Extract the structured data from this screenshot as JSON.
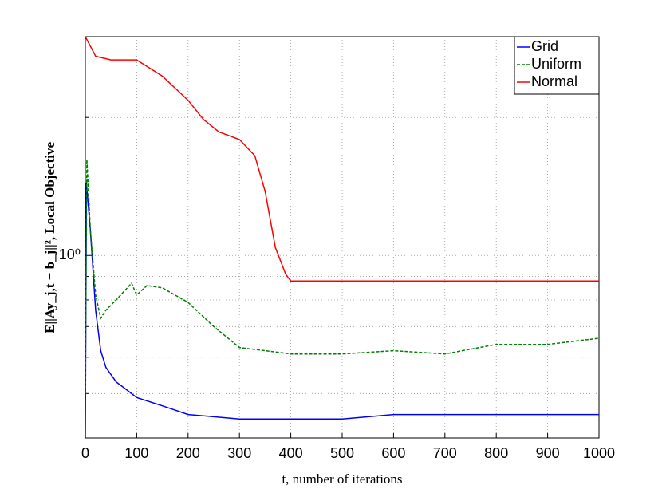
{
  "chart_data": {
    "type": "line",
    "xlabel": "t, number of iterations",
    "ylabel": "E||Ay_j,t − b_j||², Local Objective",
    "xlim": [
      0,
      1000
    ],
    "xticks": [
      0,
      100,
      200,
      300,
      400,
      500,
      600,
      700,
      800,
      900,
      1000
    ],
    "ylim": [
      0.4,
      3
    ],
    "yticks": [
      {
        "value": 1,
        "label": "10⁰"
      }
    ],
    "y_minor_ticks": [
      0.5,
      0.6,
      0.7,
      0.8,
      0.9,
      2,
      3
    ],
    "log_y": true,
    "grid": true,
    "legend": "upper right",
    "series": [
      {
        "name": "Grid",
        "color": "#0000ff",
        "dash": "solid",
        "x": [
          0,
          2,
          10,
          20,
          30,
          40,
          60,
          80,
          100,
          150,
          200,
          300,
          400,
          500,
          600,
          700,
          800,
          900,
          1000
        ],
        "values": [
          0.4,
          1.44,
          1.13,
          0.76,
          0.62,
          0.57,
          0.53,
          0.51,
          0.49,
          0.47,
          0.45,
          0.44,
          0.44,
          0.44,
          0.45,
          0.45,
          0.45,
          0.45,
          0.45
        ]
      },
      {
        "name": "Uniform",
        "color": "#008000",
        "dash": "dashed",
        "x": [
          0,
          3,
          10,
          20,
          30,
          40,
          60,
          90,
          100,
          120,
          150,
          200,
          250,
          300,
          350,
          400,
          500,
          600,
          700,
          800,
          900,
          1000
        ],
        "values": [
          0.5,
          1.62,
          1.13,
          0.82,
          0.73,
          0.76,
          0.8,
          0.87,
          0.82,
          0.86,
          0.85,
          0.79,
          0.7,
          0.63,
          0.62,
          0.61,
          0.61,
          0.62,
          0.61,
          0.64,
          0.64,
          0.66
        ]
      },
      {
        "name": "Normal",
        "color": "#ff0000",
        "dash": "solid",
        "x": [
          0,
          20,
          50,
          100,
          150,
          200,
          230,
          260,
          300,
          330,
          350,
          370,
          390,
          400,
          500,
          600,
          700,
          800,
          900,
          1000
        ],
        "values": [
          3.0,
          2.72,
          2.67,
          2.67,
          2.46,
          2.18,
          1.98,
          1.86,
          1.79,
          1.65,
          1.38,
          1.04,
          0.91,
          0.88,
          0.88,
          0.88,
          0.88,
          0.88,
          0.88,
          0.88
        ]
      }
    ]
  }
}
